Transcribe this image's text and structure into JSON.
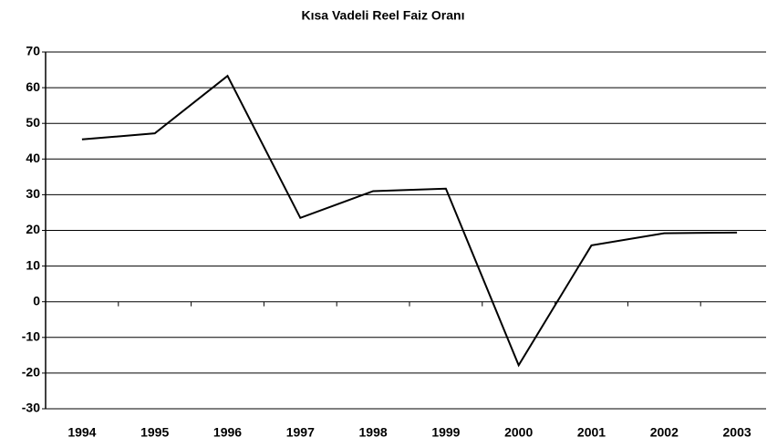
{
  "chart_data": {
    "type": "line",
    "title": "Kısa Vadeli Reel Faiz Oranı",
    "categories": [
      "1994",
      "1995",
      "1996",
      "1997",
      "1998",
      "1999",
      "2000",
      "2001",
      "2002",
      "2003"
    ],
    "series": [
      {
        "name": "Kısa Vadeli Reel Faiz Oranı",
        "color": "#000000",
        "values": [
          45.5,
          47.2,
          63.3,
          23.5,
          31,
          31.7,
          -17.8,
          15.8,
          19.2,
          19.4
        ]
      }
    ],
    "ylim": [
      -30,
      70
    ],
    "yticks": [
      -30,
      -20,
      -10,
      0,
      10,
      20,
      30,
      40,
      50,
      60,
      70
    ],
    "grid": true
  }
}
